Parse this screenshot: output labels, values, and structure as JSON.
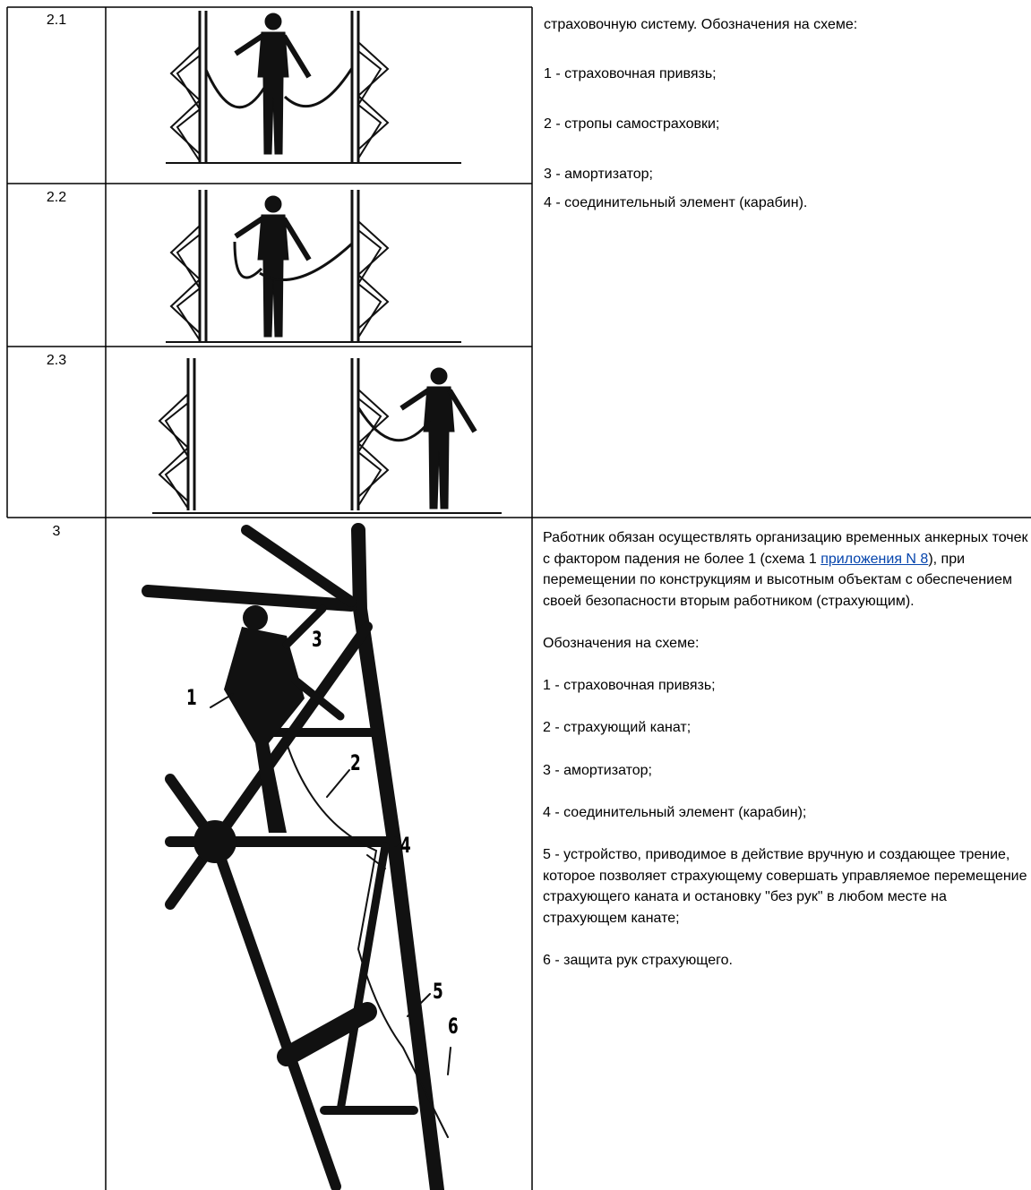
{
  "table": {
    "rows": [
      {
        "number": "2.1"
      },
      {
        "number": "2.2"
      },
      {
        "number": "2.3"
      },
      {
        "number": "3",
        "figure_labels": [
          "1",
          "3",
          "2",
          "4",
          "5",
          "6"
        ]
      }
    ],
    "group_note": {
      "intro": "страховочную систему. Обозначения на схеме:",
      "items": [
        "1 - страховочная привязь;",
        "2 - стропы самостраховки;",
        "3 - амортизатор;",
        "4 - соединительный элемент (карабин)."
      ]
    },
    "row3_note": {
      "text_before": "Работник обязан осуществлять организацию временных анкерных точек с фактором падения не более 1 (схема 1 ",
      "link": "приложения N 8",
      "text_after": "), при перемещении по конструкциям и высотным объектам с обеспечением своей безопасности вторым работником (страхующим).",
      "legend_title": "Обозначения на схеме:",
      "items": [
        "1 - страховочная привязь;",
        "2 - страхующий канат;",
        "3 - амортизатор;",
        "4 - соединительный элемент (карабин);",
        "5 - устройство, приводимое в действие вручную и создающее трение, которое позволяет страхующему совершать управляемое перемещение страхующего каната и остановку \"без рук\" в любом месте на страхующем канате;",
        "6 - защита рук страхующего."
      ]
    }
  }
}
